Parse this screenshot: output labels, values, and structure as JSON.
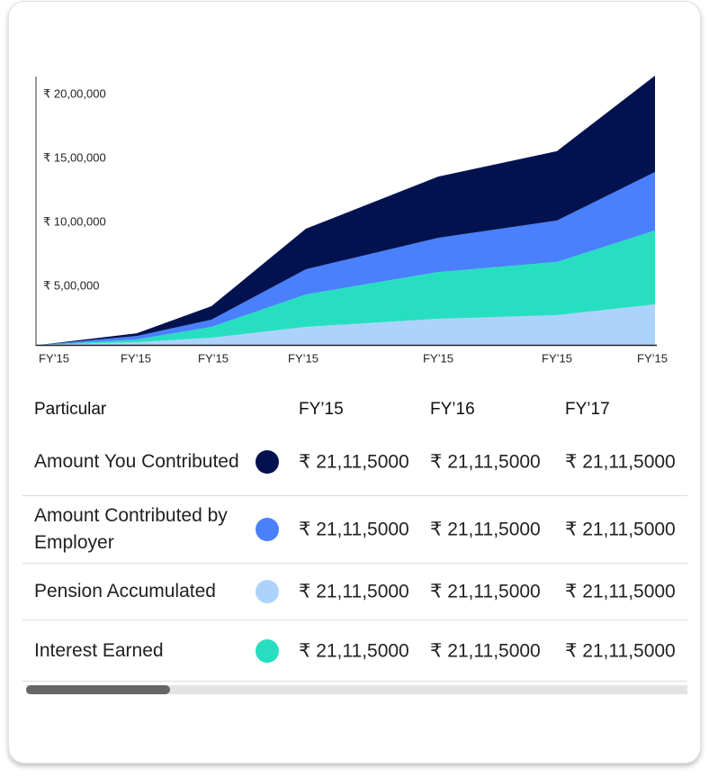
{
  "chart_data": {
    "type": "stacked-area",
    "categories": [
      "FY’15",
      "FY’15",
      "FY’15",
      "FY’15",
      "FY’15",
      "FY’15",
      "FY’15"
    ],
    "series": [
      {
        "name": "Amount You Contributed",
        "color": "#02124f",
        "values": [
          0,
          21000,
          106000,
          317000,
          479000,
          543000,
          754000
        ]
      },
      {
        "name": "Amount Contributed by Employer",
        "color": "#4a80fb",
        "values": [
          0,
          28000,
          56000,
          197000,
          268000,
          324000,
          458000
        ]
      },
      {
        "name": "Pension Accumulated",
        "color": "#acd3fb",
        "values": [
          0,
          21000,
          56000,
          141000,
          204000,
          233000,
          317000
        ]
      },
      {
        "name": "Interest Earned",
        "color": "#27dfc0",
        "values": [
          0,
          21000,
          85000,
          254000,
          366000,
          416000,
          578000
        ]
      }
    ],
    "ylim": [
      0,
      2100000
    ],
    "yticks": [
      {
        "value": 500000,
        "label": "₹ 5,00,000"
      },
      {
        "value": 1000000,
        "label": "₹ 10,00,000"
      },
      {
        "value": 1500000,
        "label": "₹ 15,00,000"
      },
      {
        "value": 2000000,
        "label": "₹ 20,00,000"
      }
    ],
    "grid": false
  },
  "table": {
    "header": [
      "Particular",
      "FY’15",
      "FY’16",
      "FY’17"
    ],
    "rows": [
      [
        "₹ 21,11,5000",
        "₹ 21,11,5000",
        "₹ 21,11,5000"
      ],
      [
        "₹ 21,11,5000",
        "₹ 21,11,5000",
        "₹ 21,11,5000"
      ],
      [
        "₹ 21,11,5000",
        "₹ 21,11,5000",
        "₹ 21,11,5000"
      ],
      [
        "₹ 21,11,5000",
        "₹ 21,11,5000",
        "₹ 21,11,5000"
      ]
    ]
  }
}
